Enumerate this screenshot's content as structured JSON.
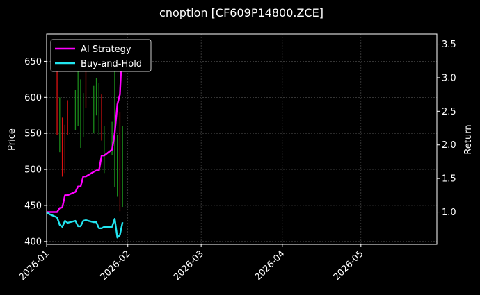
{
  "colors": {
    "background": "#000000",
    "text": "#ffffff",
    "grid": "#555555",
    "bull": "#1a8a1a",
    "bear": "#dd1111",
    "ai_strategy": "#ff00ff",
    "buy_and_hold": "#22e5f0"
  },
  "chart_data": {
    "type": "line",
    "title": "cnoption [CF609P14800.ZCE]",
    "ylabel_left": "Price",
    "ylabel_right": "Return",
    "xlim": [
      "2026-01-01",
      "2026-05-30"
    ],
    "ylim_left": [
      396,
      688
    ],
    "ylim_right": [
      0.52,
      3.65
    ],
    "x_ticks": [
      "2026-01",
      "2026-02",
      "2026-03",
      "2026-04",
      "2026-05"
    ],
    "x_tick_dates": [
      "2026-01-01",
      "2026-02-01",
      "2026-03-01",
      "2026-04-01",
      "2026-05-01"
    ],
    "y_ticks_left": [
      400,
      450,
      500,
      550,
      600,
      650
    ],
    "y_ticks_right": [
      1.0,
      1.5,
      2.0,
      2.5,
      3.0,
      3.5
    ],
    "y_tick_labels_right": [
      "1.0",
      "1.5",
      "2.0",
      "2.5",
      "3.0",
      "3.5"
    ],
    "grid": true,
    "legend_position": "top-left",
    "legend": [
      {
        "name": "AI Strategy",
        "series": "ai_strategy"
      },
      {
        "name": "Buy-and-Hold",
        "series": "buy_and_hold"
      }
    ],
    "candles": [
      {
        "date": "2026-01-05",
        "high": 645,
        "low": 548,
        "dir": "down"
      },
      {
        "date": "2026-01-06",
        "high": 600,
        "low": 524,
        "dir": "up"
      },
      {
        "date": "2026-01-07",
        "high": 572,
        "low": 490,
        "dir": "down"
      },
      {
        "date": "2026-01-08",
        "high": 562,
        "low": 495,
        "dir": "down"
      },
      {
        "date": "2026-01-09",
        "high": 596,
        "low": 548,
        "dir": "down"
      },
      {
        "date": "2026-01-12",
        "high": 610,
        "low": 555,
        "dir": "up"
      },
      {
        "date": "2026-01-13",
        "high": 648,
        "low": 560,
        "dir": "up"
      },
      {
        "date": "2026-01-14",
        "high": 625,
        "low": 530,
        "dir": "up"
      },
      {
        "date": "2026-01-15",
        "high": 606,
        "low": 545,
        "dir": "up"
      },
      {
        "date": "2026-01-16",
        "high": 640,
        "low": 585,
        "dir": "down"
      },
      {
        "date": "2026-01-19",
        "high": 616,
        "low": 550,
        "dir": "up"
      },
      {
        "date": "2026-01-20",
        "high": 627,
        "low": 575,
        "dir": "up"
      },
      {
        "date": "2026-01-21",
        "high": 620,
        "low": 548,
        "dir": "up"
      },
      {
        "date": "2026-01-22",
        "high": 604,
        "low": 540,
        "dir": "down"
      },
      {
        "date": "2026-01-23",
        "high": 560,
        "low": 495,
        "dir": "up"
      },
      {
        "date": "2026-01-26",
        "high": 566,
        "low": 520,
        "dir": "up"
      },
      {
        "date": "2026-01-27",
        "high": 662,
        "low": 475,
        "dir": "up"
      },
      {
        "date": "2026-01-28",
        "high": 548,
        "low": 462,
        "dir": "up"
      },
      {
        "date": "2026-01-29",
        "high": 580,
        "low": 442,
        "dir": "down"
      },
      {
        "date": "2026-01-30",
        "high": 560,
        "low": 448,
        "dir": "up"
      }
    ],
    "series": [
      {
        "name": "AI Strategy",
        "key": "ai_strategy",
        "axis": "right",
        "x": [
          "2026-01-01",
          "2026-01-02",
          "2026-01-05",
          "2026-01-06",
          "2026-01-07",
          "2026-01-08",
          "2026-01-09",
          "2026-01-12",
          "2026-01-13",
          "2026-01-14",
          "2026-01-15",
          "2026-01-16",
          "2026-01-19",
          "2026-01-20",
          "2026-01-21",
          "2026-01-22",
          "2026-01-23",
          "2026-01-26",
          "2026-01-27",
          "2026-01-28",
          "2026-01-29",
          "2026-01-30"
        ],
        "y": [
          1.0,
          1.0,
          1.0,
          1.06,
          1.07,
          1.25,
          1.25,
          1.3,
          1.38,
          1.38,
          1.53,
          1.53,
          1.6,
          1.62,
          1.62,
          1.84,
          1.84,
          1.93,
          2.17,
          2.6,
          2.75,
          3.56
        ]
      },
      {
        "name": "Buy-and-Hold",
        "key": "buy_and_hold",
        "axis": "right",
        "x": [
          "2026-01-01",
          "2026-01-02",
          "2026-01-05",
          "2026-01-06",
          "2026-01-07",
          "2026-01-08",
          "2026-01-09",
          "2026-01-12",
          "2026-01-13",
          "2026-01-14",
          "2026-01-15",
          "2026-01-16",
          "2026-01-19",
          "2026-01-20",
          "2026-01-21",
          "2026-01-22",
          "2026-01-23",
          "2026-01-26",
          "2026-01-27",
          "2026-01-28",
          "2026-01-29",
          "2026-01-30"
        ],
        "y": [
          1.0,
          0.97,
          0.92,
          0.81,
          0.78,
          0.87,
          0.84,
          0.87,
          0.79,
          0.79,
          0.87,
          0.88,
          0.85,
          0.85,
          0.76,
          0.76,
          0.78,
          0.78,
          0.9,
          0.62,
          0.66,
          0.85
        ]
      }
    ]
  }
}
